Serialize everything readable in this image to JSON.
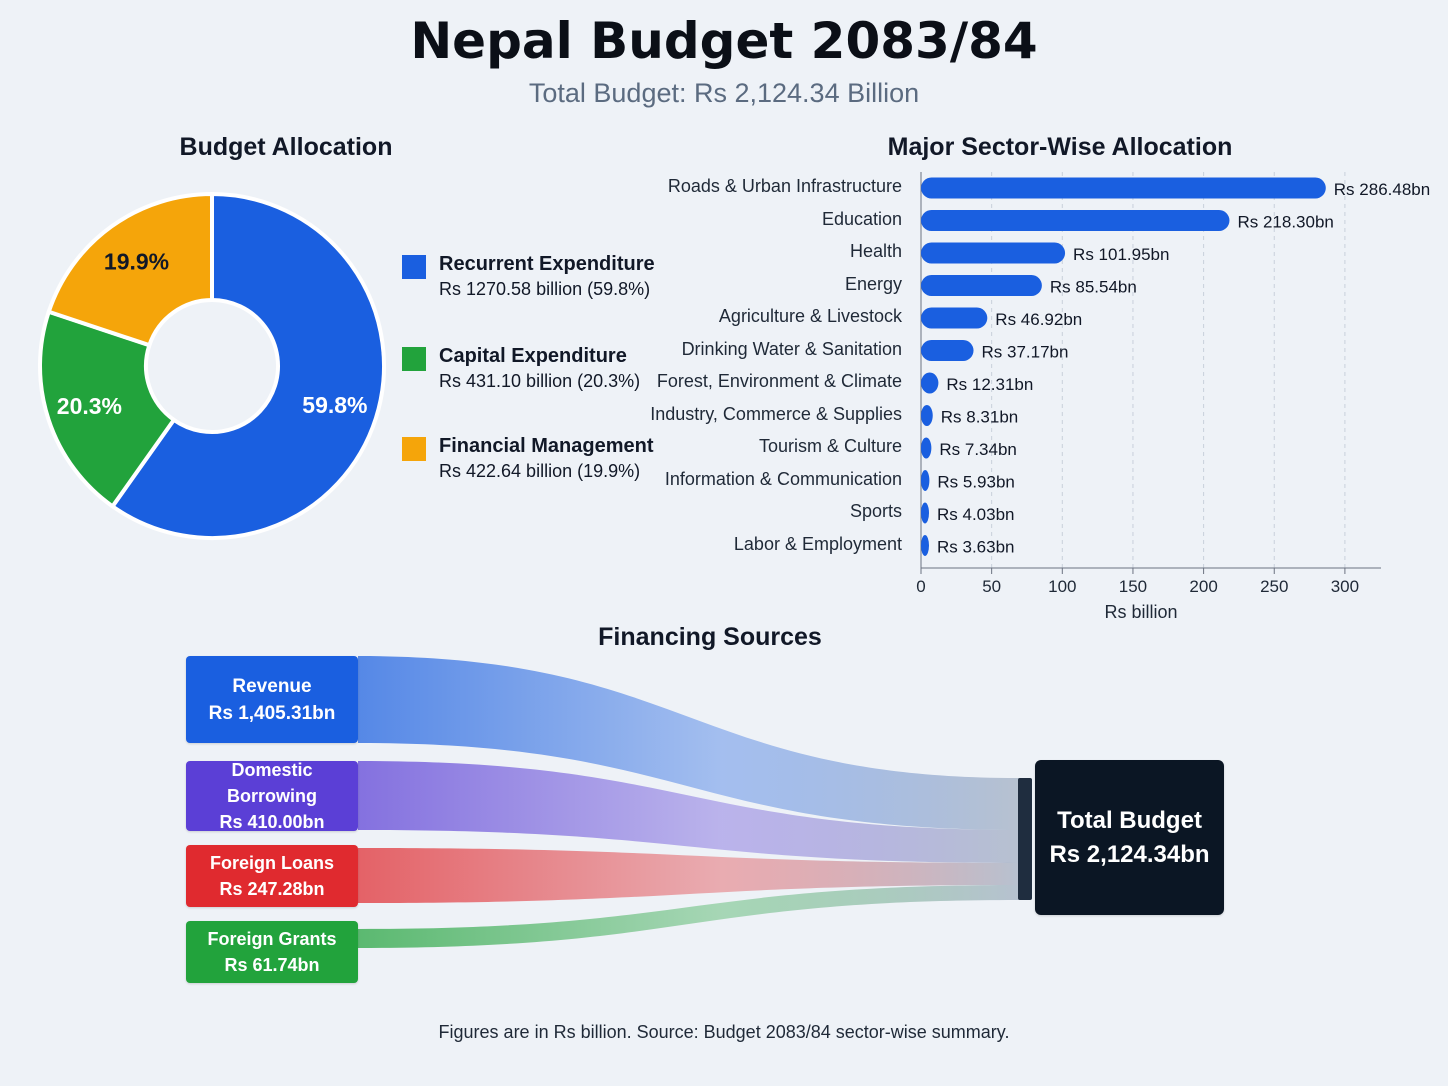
{
  "title": "Nepal Budget 2083/84",
  "subtitle": "Total Budget: Rs 2,124.34 Billion",
  "colors": {
    "recurrent": "#1a5fe0",
    "capital": "#22a33c",
    "financial": "#f5a50a",
    "bar": "#1a5fe0",
    "revenue": "#1a5fe0",
    "domestic": "#5b3fd6",
    "foreign_loans": "#e02a2f",
    "foreign_grants": "#22a33c",
    "total": "#0b1624"
  },
  "allocation": {
    "title": "Budget Allocation",
    "legend": [
      {
        "name": "Recurrent Expenditure",
        "value": "Rs 1270.58 billion (59.8%)"
      },
      {
        "name": "Capital Expenditure",
        "value": "Rs 431.10 billion (20.3%)"
      },
      {
        "name": "Financial Management",
        "value": "Rs 422.64 billion (19.9%)"
      }
    ]
  },
  "sectors": {
    "title": "Major Sector-Wise Allocation",
    "xlabel": "Rs billion",
    "ticks": [
      "0",
      "50",
      "100",
      "150",
      "200",
      "250",
      "300"
    ]
  },
  "financing": {
    "title": "Financing Sources",
    "sources": [
      {
        "name": "Revenue",
        "value": "Rs 1,405.31bn"
      },
      {
        "name": "Domestic Borrowing",
        "value": "Rs 410.00bn"
      },
      {
        "name": "Foreign Loans",
        "value": "Rs 247.28bn"
      },
      {
        "name": "Foreign Grants",
        "value": "Rs 61.74bn"
      }
    ],
    "total": {
      "name": "Total Budget",
      "value": "Rs 2,124.34bn"
    }
  },
  "footnote": "Figures are in Rs billion. Source: Budget 2083/84 sector-wise summary.",
  "chart_data": [
    {
      "type": "pie",
      "title": "Budget Allocation",
      "categories": [
        "Recurrent Expenditure",
        "Capital Expenditure",
        "Financial Management"
      ],
      "values": [
        1270.58,
        431.1,
        422.64
      ],
      "percent_labels": [
        "59.8%",
        "20.3%",
        "19.9%"
      ],
      "donut": true,
      "legend": "right"
    },
    {
      "type": "bar",
      "orientation": "horizontal",
      "title": "Major Sector-Wise Allocation",
      "xlabel": "Rs billion",
      "xlim": [
        0,
        325
      ],
      "grid": true,
      "categories": [
        "Roads & Urban Infrastructure",
        "Education",
        "Health",
        "Energy",
        "Agriculture & Livestock",
        "Drinking Water & Sanitation",
        "Forest, Environment & Climate",
        "Industry, Commerce & Supplies",
        "Tourism & Culture",
        "Information & Communication",
        "Sports",
        "Labor & Employment"
      ],
      "values": [
        286.48,
        218.3,
        101.95,
        85.54,
        46.92,
        37.17,
        12.31,
        8.31,
        7.34,
        5.93,
        4.03,
        3.63
      ],
      "data_labels": [
        "Rs 286.48bn",
        "Rs 218.30bn",
        "Rs 101.95bn",
        "Rs 85.54bn",
        "Rs 46.92bn",
        "Rs 37.17bn",
        "Rs 12.31bn",
        "Rs 8.31bn",
        "Rs 7.34bn",
        "Rs 5.93bn",
        "Rs 4.03bn",
        "Rs 3.63bn"
      ]
    },
    {
      "type": "sankey",
      "title": "Financing Sources",
      "sources": [
        "Revenue",
        "Domestic Borrowing",
        "Foreign Loans",
        "Foreign Grants"
      ],
      "values": [
        1405.31,
        410.0,
        247.28,
        61.74
      ],
      "target": "Total Budget",
      "target_value": 2124.34
    }
  ]
}
